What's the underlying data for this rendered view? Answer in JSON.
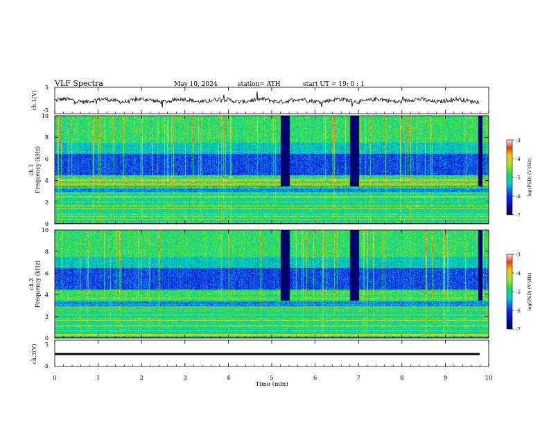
{
  "header": {
    "title": "VLF  Spectra",
    "date": "May 10, 2024",
    "station": "station= ATH",
    "start": "start  UT  =    19: 0   : 1"
  },
  "chart_data": [
    {
      "type": "line",
      "panel": "ch1-waveform",
      "ylabel": "ch.1(V)",
      "ylim": [
        -5,
        5
      ],
      "yticks": [
        "5",
        "-5"
      ],
      "xlim": [
        0,
        10
      ],
      "color": "#000000"
    },
    {
      "type": "heatmap",
      "panel": "ch1-spectrogram",
      "ylabel_line1": "ch.1",
      "ylabel_line2": "Frequency  (kHz)",
      "ylim": [
        0,
        10
      ],
      "yticks": [
        "0",
        "2",
        "4",
        "6",
        "8",
        "10"
      ],
      "xlim": [
        0,
        10
      ],
      "dropouts_min": [
        [
          5.2,
          5.4
        ],
        [
          6.8,
          7.0
        ],
        [
          9.75,
          9.85
        ]
      ],
      "colorbar": {
        "label": "log(PSD) (V²/Hz)",
        "ticks": [
          "-3",
          "-4",
          "-5",
          "-6",
          "-7"
        ],
        "range": [
          -7,
          -3
        ]
      }
    },
    {
      "type": "heatmap",
      "panel": "ch2-spectrogram",
      "ylabel_line1": "ch.2",
      "ylabel_line2": "Frequency  (kHz)",
      "ylim": [
        0,
        10
      ],
      "yticks": [
        "0",
        "2",
        "4",
        "6",
        "8",
        "10"
      ],
      "xlim": [
        0,
        10
      ],
      "dropouts_min": [
        [
          5.2,
          5.4
        ],
        [
          6.8,
          7.0
        ],
        [
          9.75,
          9.85
        ]
      ],
      "colorbar": {
        "label": "log(PSD) (V²/Hz)",
        "ticks": [
          "-3",
          "-4",
          "-5",
          "-6",
          "-7"
        ],
        "range": [
          -7,
          -3
        ]
      }
    },
    {
      "type": "line",
      "panel": "ch3-waveform",
      "ylabel": "ch.3(V)",
      "ylim": [
        -5,
        5
      ],
      "yticks": [
        "5",
        "-5"
      ],
      "xlim": [
        0,
        10
      ],
      "color": "#000000"
    }
  ],
  "xaxis": {
    "label": "Time  (min)",
    "ticks": [
      "0",
      "1",
      "2",
      "3",
      "4",
      "5",
      "6",
      "7",
      "8",
      "9",
      "10"
    ]
  },
  "colors": {
    "noise_floor": "#1d2fd8",
    "mid": "#19e35a",
    "high": "#d81a1a",
    "dropout": "#000000"
  }
}
